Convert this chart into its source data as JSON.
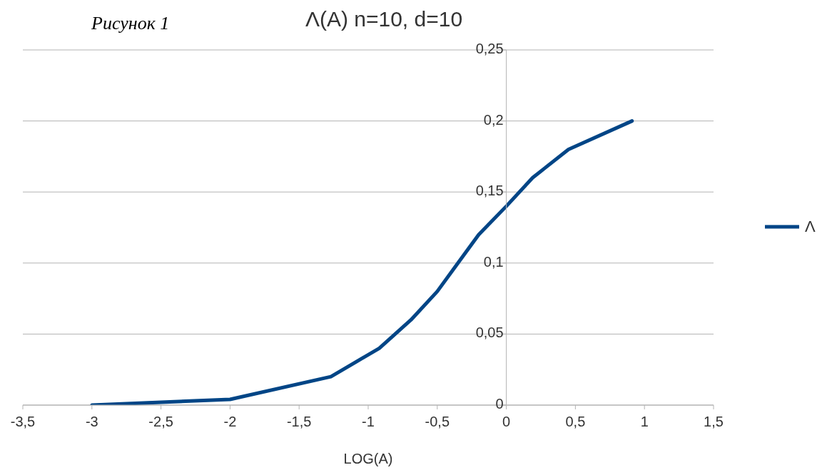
{
  "chart_data": {
    "type": "line",
    "title": "Λ(A) n=10, d=10",
    "xlabel": "LOG(A)",
    "annotations": [
      "Рисунок 1"
    ],
    "series": [
      {
        "name": "Λ",
        "color": "#004586",
        "x": [
          -3,
          -2,
          -1.27,
          -0.92,
          -0.69,
          -0.5,
          -0.35,
          -0.2,
          0,
          0.19,
          0.45,
          0.91
        ],
        "values": [
          0,
          0.004,
          0.02,
          0.04,
          0.06,
          0.08,
          0.1,
          0.12,
          0.14,
          0.16,
          0.18,
          0.2
        ]
      }
    ],
    "xlim": [
      -3.5,
      1.5
    ],
    "xticks": [
      {
        "value": -3.5,
        "label": "-3,5"
      },
      {
        "value": -3,
        "label": "-3"
      },
      {
        "value": -2.5,
        "label": "-2,5"
      },
      {
        "value": -2,
        "label": "-2"
      },
      {
        "value": -1.5,
        "label": "-1,5"
      },
      {
        "value": -1,
        "label": "-1"
      },
      {
        "value": -0.5,
        "label": "-0,5"
      },
      {
        "value": 0,
        "label": "0"
      },
      {
        "value": 0.5,
        "label": "0,5"
      },
      {
        "value": 1,
        "label": "1"
      },
      {
        "value": 1.5,
        "label": "1,5"
      }
    ],
    "ylim": [
      0,
      0.25
    ],
    "yticks": [
      {
        "value": 0,
        "label": "0"
      },
      {
        "value": 0.05,
        "label": "0,05"
      },
      {
        "value": 0.1,
        "label": "0,1"
      },
      {
        "value": 0.15,
        "label": "0,15"
      },
      {
        "value": 0.2,
        "label": "0,2"
      },
      {
        "value": 0.25,
        "label": "0,25"
      }
    ],
    "grid": "y",
    "legend": "right",
    "marker": "none",
    "line_style": "solid"
  }
}
